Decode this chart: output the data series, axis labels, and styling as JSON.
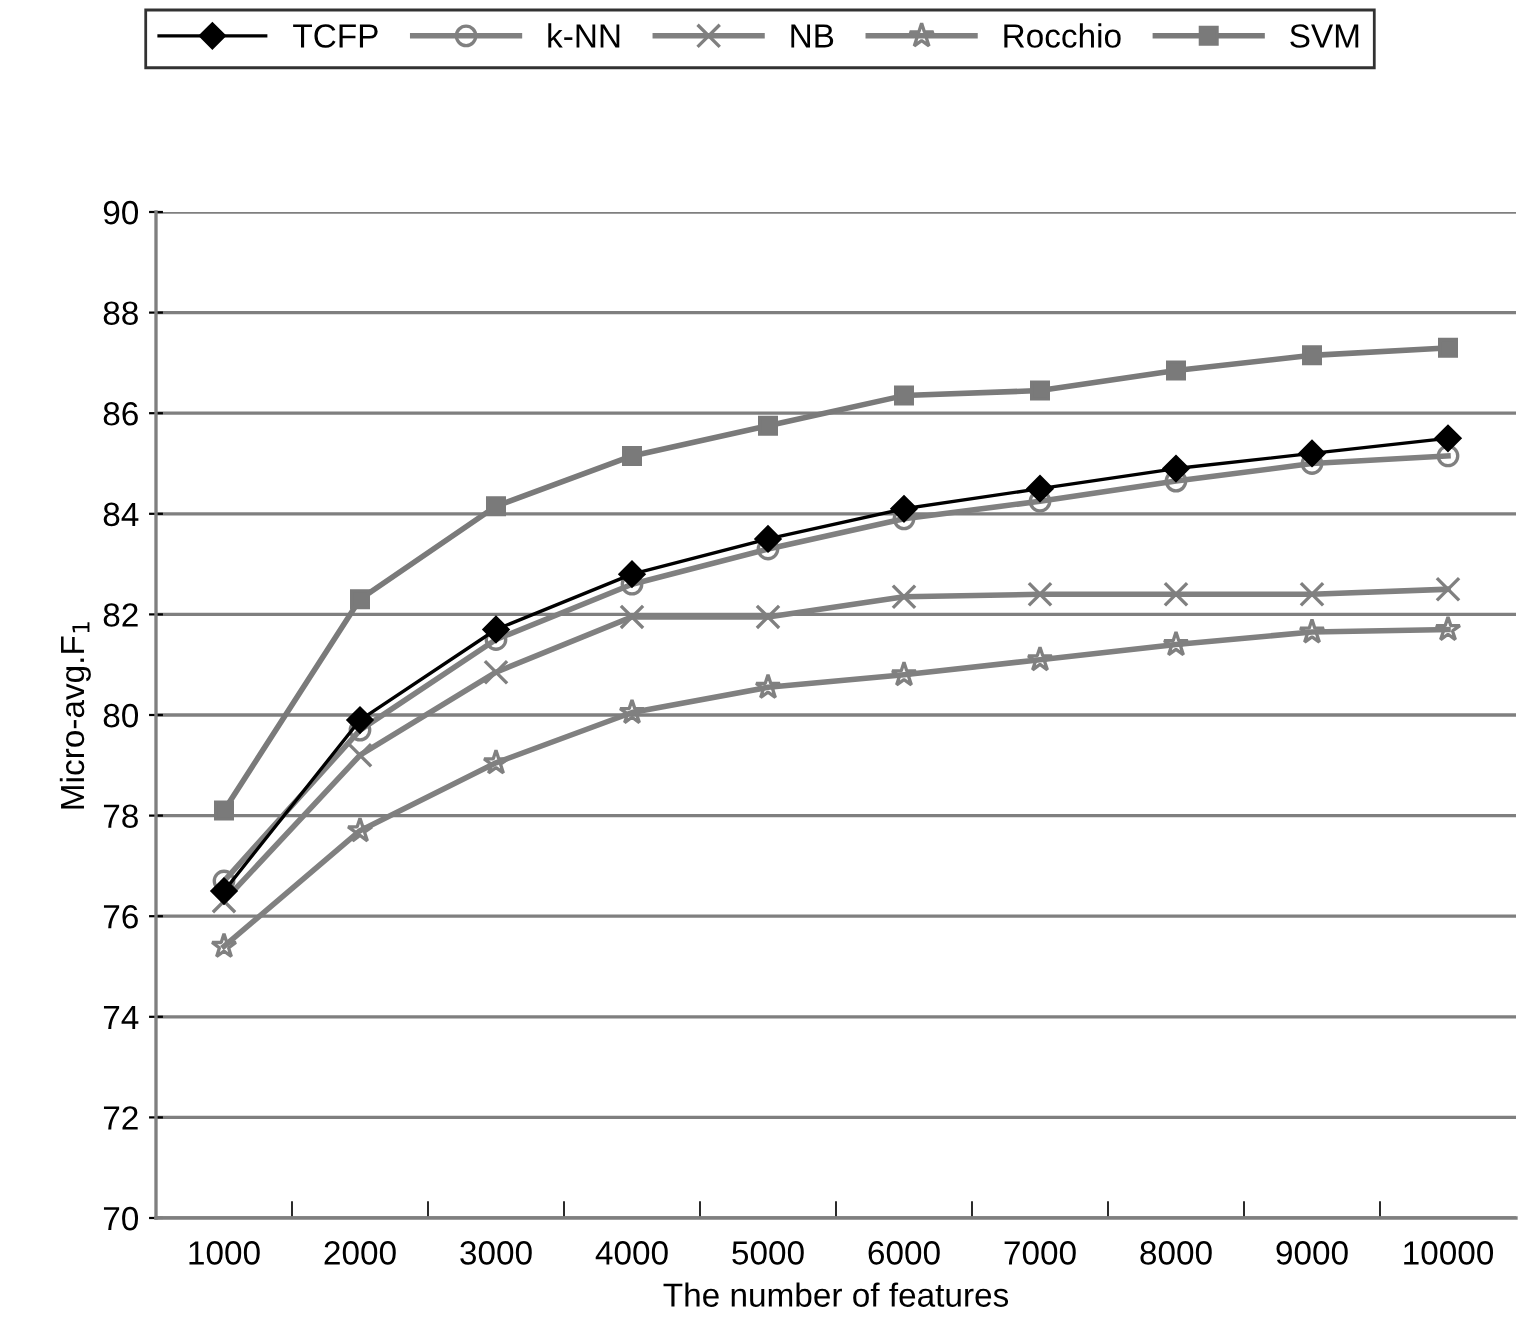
{
  "chart_data": {
    "type": "line",
    "xlabel": "The number of features",
    "ylabel": "Micro-avg.F$_{1}$",
    "categories": [
      "1000",
      "2000",
      "3000",
      "4000",
      "5000",
      "6000",
      "7000",
      "8000",
      "9000",
      "10000"
    ],
    "series": [
      {
        "name": "TCFP",
        "color": "#000000",
        "marker": "diamond",
        "values": [
          76.5,
          79.9,
          81.7,
          82.8,
          83.5,
          84.1,
          84.5,
          84.9,
          85.2,
          85.5
        ]
      },
      {
        "name": "k-NN",
        "color": "#808080",
        "marker": "circle",
        "values": [
          76.7,
          79.7,
          81.5,
          82.6,
          83.3,
          83.9,
          84.25,
          84.65,
          85.0,
          85.15
        ]
      },
      {
        "name": "NB",
        "color": "#808080",
        "marker": "cross",
        "values": [
          76.3,
          79.2,
          80.85,
          81.95,
          81.95,
          82.35,
          82.4,
          82.4,
          82.4,
          82.5
        ]
      },
      {
        "name": "Rocchio",
        "color": "#808080",
        "marker": "star",
        "values": [
          75.4,
          77.7,
          79.05,
          80.05,
          80.55,
          80.8,
          81.1,
          81.4,
          81.65,
          81.7
        ]
      },
      {
        "name": "SVM",
        "color": "#7a7a7a",
        "marker": "square",
        "values": [
          78.1,
          82.3,
          84.15,
          85.15,
          85.75,
          86.35,
          86.45,
          86.85,
          87.15,
          87.3
        ]
      }
    ],
    "ylim": [
      70,
      90
    ],
    "yticks": [
      70,
      72,
      74,
      76,
      78,
      80,
      82,
      84,
      86,
      88,
      90
    ],
    "grid": "y",
    "legend": "top",
    "line_style": "solid"
  }
}
